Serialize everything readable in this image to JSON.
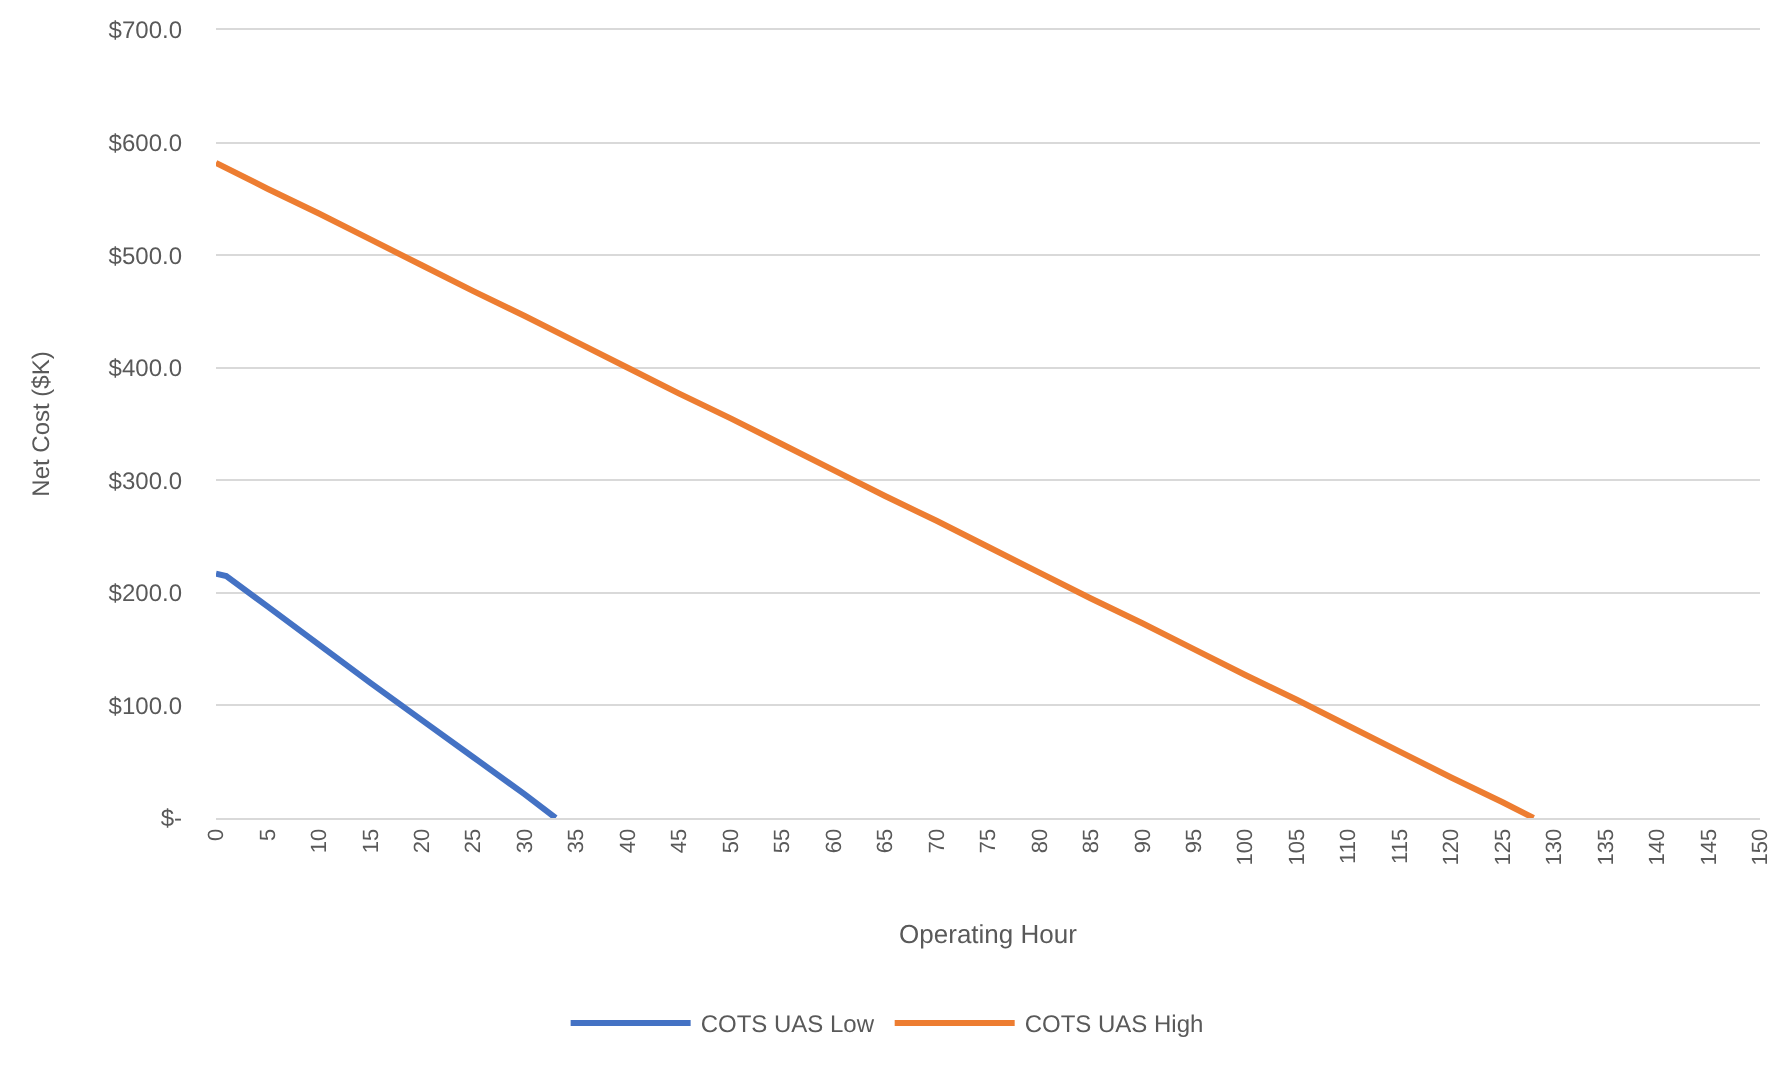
{
  "chart_data": {
    "type": "line",
    "xlabel": "Operating Hour",
    "ylabel": "Net Cost ($K)",
    "series": [
      {
        "name": "COTS UAS Low",
        "color": "#4472c4",
        "x": [
          0,
          1,
          5,
          10,
          15,
          20,
          25,
          30,
          33
        ],
        "values": [
          217,
          215,
          188,
          154,
          120,
          87,
          54,
          21,
          0
        ]
      },
      {
        "name": "COTS UAS High",
        "color": "#ed7d31",
        "x": [
          0,
          5,
          10,
          15,
          20,
          25,
          30,
          35,
          40,
          45,
          50,
          55,
          60,
          65,
          70,
          75,
          80,
          85,
          90,
          95,
          100,
          105,
          110,
          115,
          120,
          125,
          128
        ],
        "values": [
          582,
          559,
          537,
          514,
          491,
          468,
          446,
          423,
          400,
          377,
          355,
          332,
          309,
          286,
          264,
          241,
          218,
          195,
          173,
          150,
          127,
          105,
          82,
          59,
          36,
          14,
          0
        ]
      }
    ],
    "xlim": [
      0,
      150
    ],
    "xticks": [
      0,
      5,
      10,
      15,
      20,
      25,
      30,
      35,
      40,
      45,
      50,
      55,
      60,
      65,
      70,
      75,
      80,
      85,
      90,
      95,
      100,
      105,
      110,
      115,
      120,
      125,
      130,
      135,
      140,
      145,
      150
    ],
    "ylim": [
      0,
      700
    ],
    "yticks": [
      {
        "value": 0,
        "label": "$-"
      },
      {
        "value": 100,
        "label": "$100.0"
      },
      {
        "value": 200,
        "label": "$200.0"
      },
      {
        "value": 300,
        "label": "$300.0"
      },
      {
        "value": 400,
        "label": "$400.0"
      },
      {
        "value": 500,
        "label": "$500.0"
      },
      {
        "value": 600,
        "label": "$600.0"
      },
      {
        "value": 700,
        "label": "$700.0"
      }
    ],
    "grid": "y",
    "legend": "bottom"
  }
}
